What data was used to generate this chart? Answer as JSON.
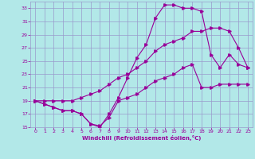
{
  "xlabel": "Windchill (Refroidissement éolien,°C)",
  "bg_color": "#b2e8e8",
  "grid_color": "#9999cc",
  "line_color": "#990099",
  "xlim": [
    -0.5,
    23.5
  ],
  "ylim": [
    15,
    34
  ],
  "xticks": [
    0,
    1,
    2,
    3,
    4,
    5,
    6,
    7,
    8,
    9,
    10,
    11,
    12,
    13,
    14,
    15,
    16,
    17,
    18,
    19,
    20,
    21,
    22,
    23
  ],
  "yticks": [
    15,
    17,
    19,
    21,
    23,
    25,
    27,
    29,
    31,
    33
  ],
  "curve1_x": [
    0,
    1,
    2,
    3,
    4,
    5,
    6,
    7,
    8,
    9,
    10,
    11,
    12,
    13,
    14,
    15,
    16,
    17,
    18,
    19,
    20,
    21,
    22,
    23
  ],
  "curve1_y": [
    19,
    18.5,
    18,
    17.5,
    17.5,
    17,
    15.5,
    15.2,
    16.5,
    19,
    19.5,
    20,
    21,
    22,
    22.5,
    23,
    24,
    24.5,
    21,
    21,
    21.5,
    21.5,
    21.5,
    21.5
  ],
  "curve2_x": [
    0,
    1,
    2,
    3,
    4,
    5,
    6,
    7,
    8,
    9,
    10,
    11,
    12,
    13,
    14,
    15,
    16,
    17,
    18,
    19,
    20,
    21,
    22,
    23
  ],
  "curve2_y": [
    19,
    19,
    19,
    19,
    19,
    19.5,
    20,
    20.5,
    21.5,
    22.5,
    23,
    24,
    25,
    26.5,
    27.5,
    28,
    28.5,
    29.5,
    29.5,
    30,
    30,
    29.5,
    27,
    24
  ],
  "curve3_x": [
    0,
    1,
    2,
    3,
    4,
    5,
    6,
    7,
    8,
    9,
    10,
    11,
    12,
    13,
    14,
    15,
    16,
    17,
    18,
    19,
    20,
    21,
    22,
    23
  ],
  "curve3_y": [
    19,
    18.5,
    18,
    17.5,
    17.5,
    17,
    15.5,
    15,
    17,
    19.5,
    22.5,
    25.5,
    27.5,
    31.5,
    33.5,
    33.5,
    33,
    33,
    32.5,
    26,
    24,
    26,
    24.5,
    24
  ]
}
